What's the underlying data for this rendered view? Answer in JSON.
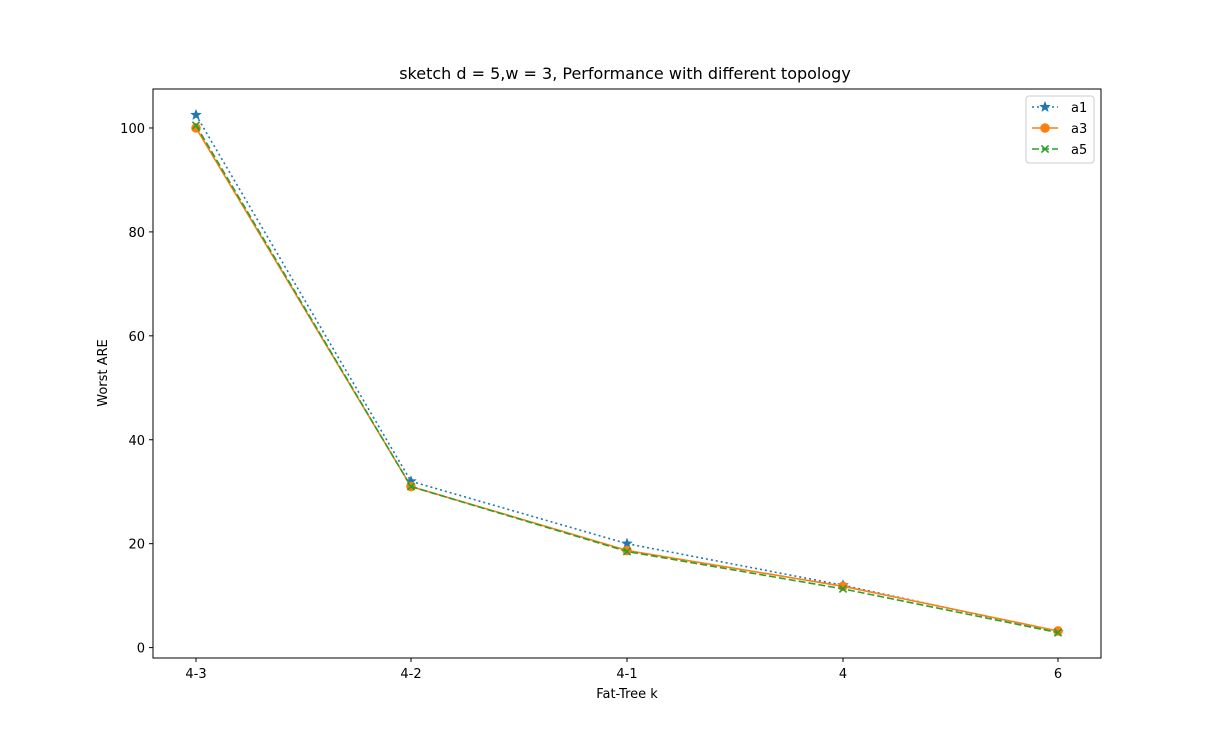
{
  "chart_data": {
    "type": "line",
    "title": "sketch d = 5,w = 3, Performance with different topology",
    "xlabel": "Fat-Tree k",
    "ylabel": "Worst ARE",
    "categories": [
      "4-3",
      "4-2",
      "4-1",
      "4",
      "6"
    ],
    "ylim": [
      -2,
      107.5
    ],
    "yticks": [
      0,
      20,
      40,
      60,
      80,
      100
    ],
    "grid": false,
    "legend_position": "top-right",
    "series": [
      {
        "name": "a1",
        "values": [
          102.5,
          32.0,
          20.0,
          12.0,
          3.0
        ],
        "color": "#1f77b4",
        "marker": "star",
        "linestyle": "dotted"
      },
      {
        "name": "a3",
        "values": [
          100.0,
          31.0,
          18.7,
          11.8,
          3.2
        ],
        "color": "#ff7f0e",
        "marker": "circle",
        "linestyle": "solid"
      },
      {
        "name": "a5",
        "values": [
          100.5,
          31.0,
          18.5,
          11.3,
          2.9
        ],
        "color": "#2ca02c",
        "marker": "x",
        "linestyle": "dashed"
      }
    ]
  }
}
